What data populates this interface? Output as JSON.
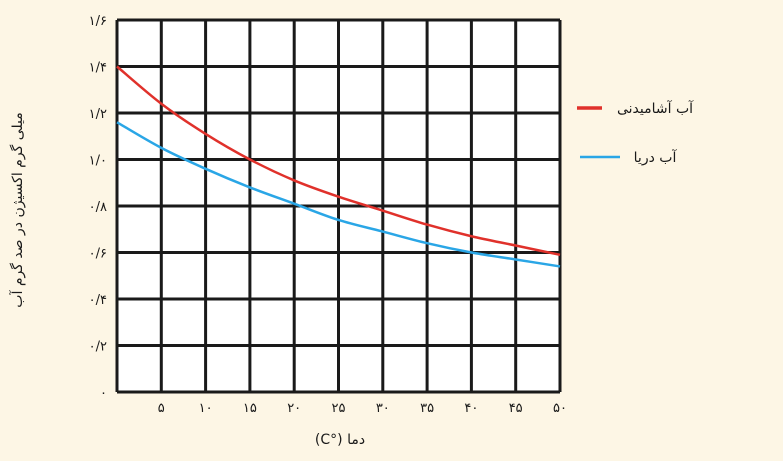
{
  "chart_data": {
    "type": "line",
    "xlabel": "دما (°C)",
    "ylabel": "میلی گرم اکسیژن در صد گرم آب",
    "xlim": [
      0,
      50
    ],
    "ylim": [
      0,
      1.6
    ],
    "x_ticks": [
      0,
      5,
      10,
      15,
      20,
      25,
      30,
      35,
      40,
      45,
      50
    ],
    "x_tick_labels": [
      "",
      "۵",
      "۱۰",
      "۱۵",
      "۲۰",
      "۲۵",
      "۳۰",
      "۳۵",
      "۴۰",
      "۴۵",
      "۵۰"
    ],
    "y_ticks": [
      0,
      0.2,
      0.4,
      0.6,
      0.8,
      1.0,
      1.2,
      1.4,
      1.6
    ],
    "y_tick_labels": [
      "۰",
      "۰/۲",
      "۰/۴",
      "۰/۶",
      "۰/۸",
      "۱/۰",
      "۱/۲",
      "۱/۴",
      "۱/۶"
    ],
    "grid": true,
    "legend_position": "right",
    "series": [
      {
        "name": "آب آشامیدنی",
        "color": "#e0312b",
        "x": [
          0,
          5,
          10,
          15,
          20,
          25,
          30,
          35,
          40,
          45,
          50
        ],
        "y": [
          1.4,
          1.24,
          1.11,
          1.0,
          0.91,
          0.84,
          0.78,
          0.72,
          0.67,
          0.63,
          0.59
        ]
      },
      {
        "name": "آب دریا",
        "color": "#2aa6e6",
        "x": [
          0,
          5,
          10,
          15,
          20,
          25,
          30,
          35,
          40,
          45,
          50
        ],
        "y": [
          1.16,
          1.05,
          0.96,
          0.88,
          0.81,
          0.74,
          0.69,
          0.64,
          0.6,
          0.57,
          0.54
        ]
      }
    ]
  }
}
